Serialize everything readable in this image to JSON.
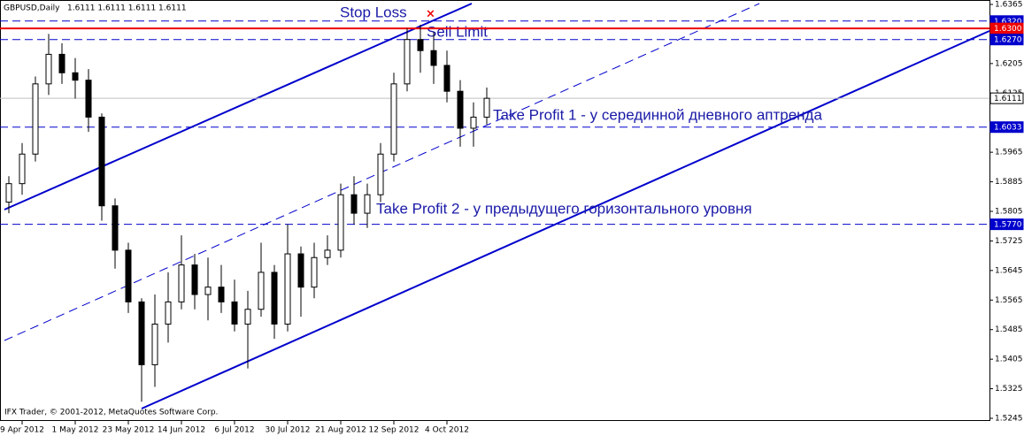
{
  "chart_data": {
    "type": "candlestick",
    "title": "GBPUSD,Daily",
    "subtitle": "1.6111 1.6111 1.6111 1.6111",
    "credit": "IFX Trader, © 2001-2012, MetaQuotes Software Corp.",
    "categories": [
      null,
      "9 Apr 2012",
      null,
      null,
      null,
      "1 May 2012",
      null,
      null,
      null,
      "23 May 2012",
      null,
      null,
      null,
      "14 Jun 2012",
      null,
      null,
      null,
      "6 Jul 2012",
      null,
      null,
      null,
      "30 Jul 2012",
      null,
      null,
      null,
      "21 Aug 2012",
      null,
      null,
      null,
      "12 Sep 2012",
      null,
      null,
      null,
      "4 Oct 2012",
      null,
      null,
      null
    ],
    "open": [
      1.583,
      1.588,
      1.596,
      1.615,
      1.623,
      1.618,
      1.616,
      1.606,
      1.582,
      1.57,
      1.556,
      1.539,
      1.55,
      1.556,
      1.566,
      1.558,
      1.56,
      1.556,
      1.55,
      1.554,
      1.564,
      1.55,
      1.569,
      1.56,
      1.568,
      1.57,
      1.585,
      1.58,
      1.585,
      1.596,
      1.615,
      1.627,
      1.624,
      1.62,
      1.613,
      1.603,
      1.606
    ],
    "high": [
      1.59,
      1.599,
      1.617,
      1.6285,
      1.626,
      1.622,
      1.619,
      1.607,
      1.584,
      1.572,
      1.557,
      1.558,
      1.564,
      1.574,
      1.569,
      1.568,
      1.566,
      1.562,
      1.559,
      1.572,
      1.566,
      1.577,
      1.571,
      1.572,
      1.574,
      1.588,
      1.59,
      1.588,
      1.599,
      1.618,
      1.63,
      1.631,
      1.629,
      1.624,
      1.616,
      1.61,
      1.614
    ],
    "low": [
      1.58,
      1.585,
      1.594,
      1.612,
      1.615,
      1.611,
      1.602,
      1.578,
      1.565,
      1.553,
      1.529,
      1.533,
      1.545,
      1.554,
      1.554,
      1.551,
      1.553,
      1.548,
      1.538,
      1.552,
      1.546,
      1.548,
      1.552,
      1.557,
      1.566,
      1.568,
      1.577,
      1.576,
      1.583,
      1.594,
      1.613,
      1.618,
      1.615,
      1.61,
      1.598,
      1.598,
      1.604
    ],
    "close": [
      1.588,
      1.596,
      1.615,
      1.623,
      1.618,
      1.616,
      1.606,
      1.582,
      1.57,
      1.556,
      1.539,
      1.55,
      1.556,
      1.566,
      1.558,
      1.56,
      1.556,
      1.55,
      1.554,
      1.564,
      1.55,
      1.569,
      1.56,
      1.568,
      1.57,
      1.585,
      1.58,
      1.585,
      1.596,
      1.615,
      1.627,
      1.624,
      1.62,
      1.613,
      1.603,
      1.606,
      1.6111
    ],
    "ylim": [
      1.5245,
      1.6365
    ],
    "yticks": [
      1.6365,
      1.6205,
      1.6125,
      1.5965,
      1.5885,
      1.5805,
      1.5725,
      1.5645,
      1.5565,
      1.5485,
      1.5405,
      1.5325,
      1.5245
    ],
    "levels": [
      {
        "price": {
          "value": 1.632,
          "label": "1.6320"
        },
        "color": "#0000cc",
        "style": "dashed"
      },
      {
        "price": {
          "value": 1.63,
          "label": "1.6300"
        },
        "color": "#ee0000",
        "style": "solid"
      },
      {
        "price": {
          "value": 1.627,
          "label": "1.6270"
        },
        "color": "#0000cc",
        "style": "dashed"
      },
      {
        "price": 1.6111,
        "color": "#c0c0c0",
        "style": "solid"
      },
      {
        "price": 1.6033,
        "color": "#0000cc",
        "style": "dashed"
      },
      {
        "price": {
          "value": 1.577,
          "label": "1.5770"
        },
        "color": "#0000cc",
        "style": "dashed"
      }
    ],
    "annotations": [
      "Stop Loss",
      "Sell Limit",
      "Take Profit 1 -  у серединной дневного аптренда",
      "Take Profit 2 -  у предыдущего горизонтального уровня"
    ]
  }
}
